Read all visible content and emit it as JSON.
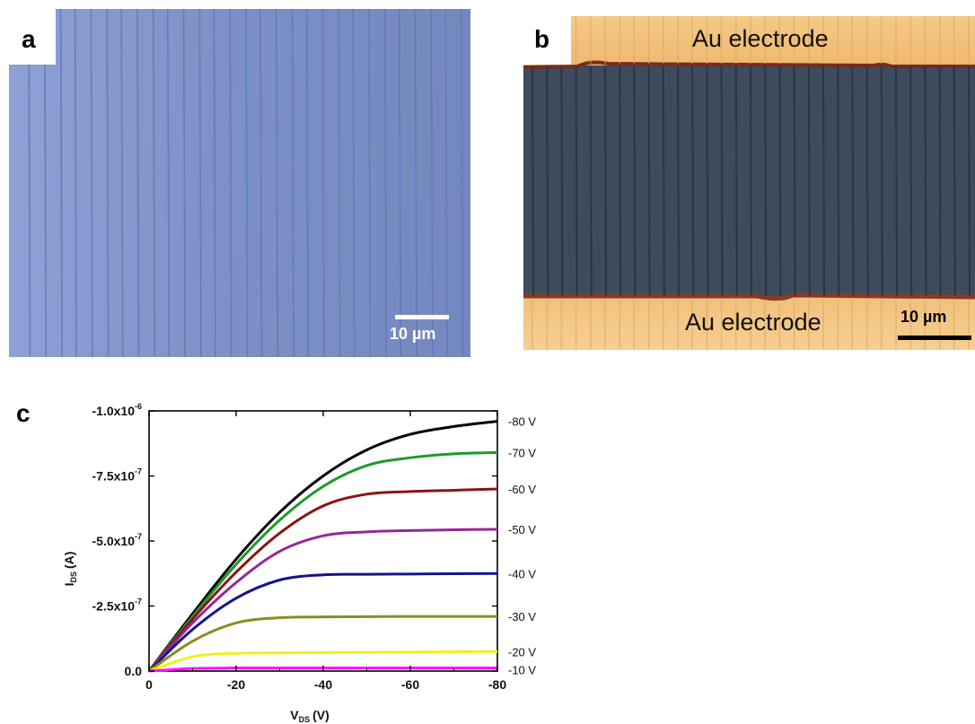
{
  "panels": {
    "a": {
      "letter": "a",
      "scale_bar": "10 µm"
    },
    "b": {
      "letter": "b",
      "electrode_top": "Au electrode",
      "electrode_bottom": "Au electrode",
      "scale_bar": "10 µm"
    },
    "c": {
      "letter": "c"
    }
  },
  "colors": {
    "panel_a_bg": "#7d90c8",
    "panel_a_line": "#5a78b8",
    "gold": "#f4c27a",
    "channel": "#3d4a5c",
    "series": [
      "#000000",
      "#1e9a2a",
      "#8c1414",
      "#962896",
      "#14148c",
      "#8c8c1e",
      "#f0f01e",
      "#ff14ff"
    ]
  },
  "chart_data": {
    "type": "line",
    "xlabel_main": "V",
    "xlabel_sub": "DS",
    "xlabel_unit": "(V)",
    "ylabel_main": "I",
    "ylabel_sub": "DS",
    "ylabel_unit": "(A)",
    "xlim": [
      0,
      -80
    ],
    "ylim": [
      0.0,
      -1e-06
    ],
    "xticks": [
      0,
      -20,
      -40,
      -60,
      -80
    ],
    "xtick_labels": [
      "0",
      "-20",
      "-40",
      "-60",
      "-80"
    ],
    "yticks": [
      0.0,
      -2.5e-07,
      -5e-07,
      -7.5e-07,
      -1e-06
    ],
    "ytick_labels": [
      {
        "base": "0.0",
        "exp": ""
      },
      {
        "base": "-2.5x10",
        "exp": "-7"
      },
      {
        "base": "-5.0x10",
        "exp": "-7"
      },
      {
        "base": "-7.5x10",
        "exp": "-7"
      },
      {
        "base": "-1.0x10",
        "exp": "-6"
      }
    ],
    "series": [
      {
        "name": "-80 V",
        "x": [
          0,
          -10,
          -20,
          -30,
          -40,
          -50,
          -60,
          -70,
          -80
        ],
        "y": [
          0,
          -2.2e-07,
          -4.3e-07,
          -6.1e-07,
          -7.5e-07,
          -8.5e-07,
          -9.1e-07,
          -9.4e-07,
          -9.6e-07
        ]
      },
      {
        "name": "-70 V",
        "x": [
          0,
          -10,
          -20,
          -30,
          -40,
          -50,
          -60,
          -70,
          -80
        ],
        "y": [
          0,
          -2.1e-07,
          -4.1e-07,
          -5.8e-07,
          -7.1e-07,
          -7.9e-07,
          -8.2e-07,
          -8.35e-07,
          -8.4e-07
        ]
      },
      {
        "name": "-60 V",
        "x": [
          0,
          -10,
          -20,
          -30,
          -40,
          -50,
          -60,
          -70,
          -80
        ],
        "y": [
          0,
          -2e-07,
          -3.8e-07,
          -5.3e-07,
          -6.35e-07,
          -6.8e-07,
          -6.9e-07,
          -6.95e-07,
          -7e-07
        ]
      },
      {
        "name": "-50 V",
        "x": [
          0,
          -10,
          -20,
          -30,
          -40,
          -50,
          -60,
          -70,
          -80
        ],
        "y": [
          0,
          -1.85e-07,
          -3.4e-07,
          -4.6e-07,
          -5.2e-07,
          -5.35e-07,
          -5.4e-07,
          -5.43e-07,
          -5.45e-07
        ]
      },
      {
        "name": "-40 V",
        "x": [
          0,
          -10,
          -20,
          -30,
          -40,
          -50,
          -60,
          -70,
          -80
        ],
        "y": [
          0,
          -1.6e-07,
          -2.8e-07,
          -3.5e-07,
          -3.7e-07,
          -3.72e-07,
          -3.73e-07,
          -3.74e-07,
          -3.75e-07
        ]
      },
      {
        "name": "-30 V",
        "x": [
          0,
          -10,
          -20,
          -30,
          -40,
          -50,
          -60,
          -70,
          -80
        ],
        "y": [
          0,
          -1.15e-07,
          -1.85e-07,
          -2.05e-07,
          -2.08e-07,
          -2.09e-07,
          -2.1e-07,
          -2.1e-07,
          -2.1e-07
        ]
      },
      {
        "name": "-20 V",
        "x": [
          0,
          -10,
          -20,
          -30,
          -40,
          -50,
          -60,
          -70,
          -80
        ],
        "y": [
          0,
          -5.5e-08,
          -6.8e-08,
          -7e-08,
          -7.1e-08,
          -7.2e-08,
          -7.3e-08,
          -7.4e-08,
          -7.5e-08
        ]
      },
      {
        "name": "-10 V",
        "x": [
          0,
          -10,
          -20,
          -30,
          -40,
          -50,
          -60,
          -70,
          -80
        ],
        "y": [
          0,
          -1e-08,
          -1.2e-08,
          -1.2e-08,
          -1.2e-08,
          -1.2e-08,
          -1.2e-08,
          -1.2e-08,
          -1.2e-08
        ]
      }
    ]
  }
}
